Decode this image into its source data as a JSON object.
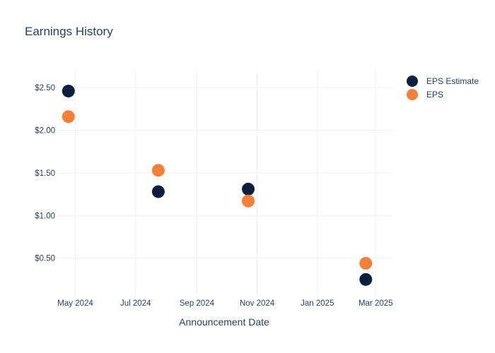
{
  "chart_data": {
    "type": "scatter",
    "title": "Earnings History",
    "xlabel": "Announcement Date",
    "ylabel": "",
    "x_ticks": [
      {
        "date": "2024-05-01",
        "label": "May 2024"
      },
      {
        "date": "2024-07-01",
        "label": "Jul 2024"
      },
      {
        "date": "2024-09-01",
        "label": "Sep 2024"
      },
      {
        "date": "2024-11-01",
        "label": "Nov 2024"
      },
      {
        "date": "2025-01-01",
        "label": "Jan 2025"
      },
      {
        "date": "2025-03-01",
        "label": "Mar 2025"
      }
    ],
    "y_ticks": [
      {
        "value": 0.5,
        "label": "$0.50"
      },
      {
        "value": 1.0,
        "label": "$1.00"
      },
      {
        "value": 1.5,
        "label": "$1.50"
      },
      {
        "value": 2.0,
        "label": "$2.00"
      },
      {
        "value": 2.5,
        "label": "$2.50"
      }
    ],
    "xlim": [
      "2024-04-12",
      "2025-03-18"
    ],
    "ylim": [
      0.05,
      2.7
    ],
    "grid": true,
    "legend_position": "top-right",
    "series": [
      {
        "name": "EPS Estimate",
        "color": "#0b1f3f",
        "points": [
          {
            "x": "2024-04-24",
            "y": 2.46
          },
          {
            "x": "2024-07-24",
            "y": 1.28
          },
          {
            "x": "2024-10-23",
            "y": 1.31
          },
          {
            "x": "2025-02-19",
            "y": 0.25
          }
        ]
      },
      {
        "name": "EPS",
        "color": "#f47f36",
        "points": [
          {
            "x": "2024-04-24",
            "y": 2.16
          },
          {
            "x": "2024-07-24",
            "y": 1.53
          },
          {
            "x": "2024-10-23",
            "y": 1.17
          },
          {
            "x": "2025-02-19",
            "y": 0.44
          }
        ]
      }
    ]
  }
}
